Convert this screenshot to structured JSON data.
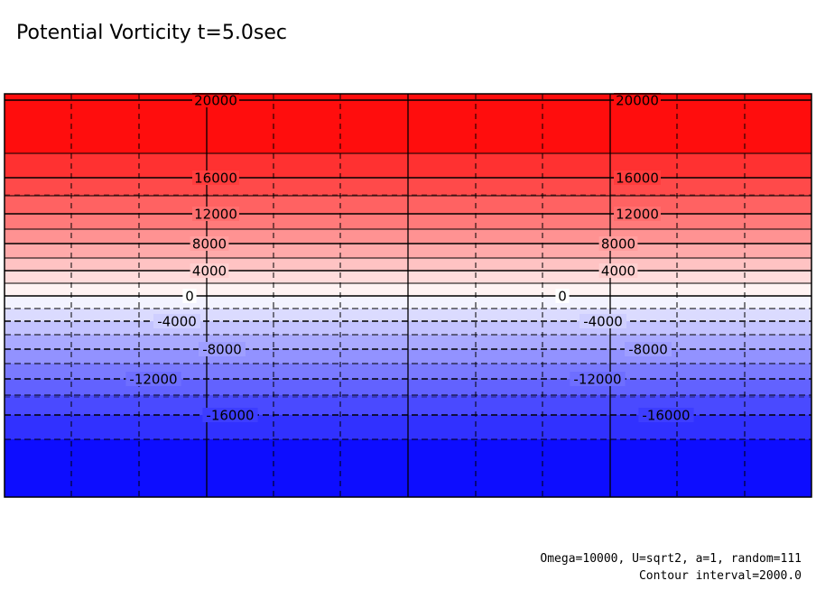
{
  "chart_data": {
    "type": "heatmap",
    "title": "Potential Vorticity t=5.0sec",
    "contour_interval": 2000,
    "value_range": [
      -20000,
      20000
    ],
    "colormap": {
      "positive": "#ff0d0d",
      "zero": "#ffffff",
      "negative": "#0d0dff"
    },
    "contour_style": {
      "positive": "solid",
      "zero": "solid",
      "negative": "dashed"
    },
    "contour_lines": [
      {
        "value": 20000,
        "label": "20000"
      },
      {
        "value": 16000,
        "label": "16000"
      },
      {
        "value": 12000,
        "label": "12000"
      },
      {
        "value": 8000,
        "label": "8000"
      },
      {
        "value": 4000,
        "label": "4000"
      },
      {
        "value": 0,
        "label": "0"
      },
      {
        "value": -4000,
        "label": "-4000"
      },
      {
        "value": -8000,
        "label": "-8000"
      },
      {
        "value": -12000,
        "label": "-12000"
      },
      {
        "value": -16000,
        "label": "-16000"
      }
    ],
    "grid": true,
    "grid_style": "dashed"
  },
  "notes": {
    "params": "Omega=10000, U=sqrt2, a=1, random=111",
    "interval": "Contour interval=2000.0"
  }
}
